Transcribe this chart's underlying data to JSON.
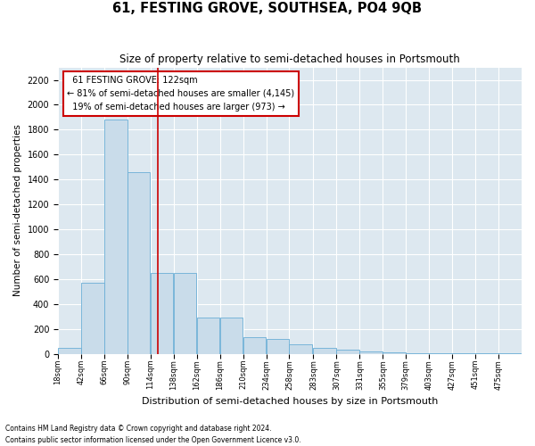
{
  "title": "61, FESTING GROVE, SOUTHSEA, PO4 9QB",
  "subtitle": "Size of property relative to semi-detached houses in Portsmouth",
  "xlabel": "Distribution of semi-detached houses by size in Portsmouth",
  "ylabel": "Number of semi-detached properties",
  "footnote1": "Contains HM Land Registry data © Crown copyright and database right 2024.",
  "footnote2": "Contains public sector information licensed under the Open Government Licence v3.0.",
  "property_size": 122,
  "property_label": "61 FESTING GROVE: 122sqm",
  "pct_smaller": 81,
  "n_smaller": 4145,
  "pct_larger": 19,
  "n_larger": 973,
  "bin_edges": [
    18,
    42,
    66,
    90,
    114,
    138,
    162,
    186,
    210,
    234,
    258,
    283,
    307,
    331,
    355,
    379,
    403,
    427,
    451,
    475,
    499
  ],
  "bar_heights": [
    50,
    570,
    1880,
    1460,
    650,
    650,
    290,
    290,
    130,
    120,
    75,
    50,
    30,
    20,
    10,
    5,
    3,
    2,
    1,
    1
  ],
  "bar_color": "#c9dcea",
  "bar_edgecolor": "#6aaed6",
  "vline_color": "#cc0000",
  "vline_x": 122,
  "annotation_box_color": "#cc0000",
  "background_color": "#dde8f0",
  "ylim": [
    0,
    2300
  ],
  "yticks": [
    0,
    200,
    400,
    600,
    800,
    1000,
    1200,
    1400,
    1600,
    1800,
    2000,
    2200
  ],
  "figsize": [
    6.0,
    5.0
  ],
  "dpi": 100
}
